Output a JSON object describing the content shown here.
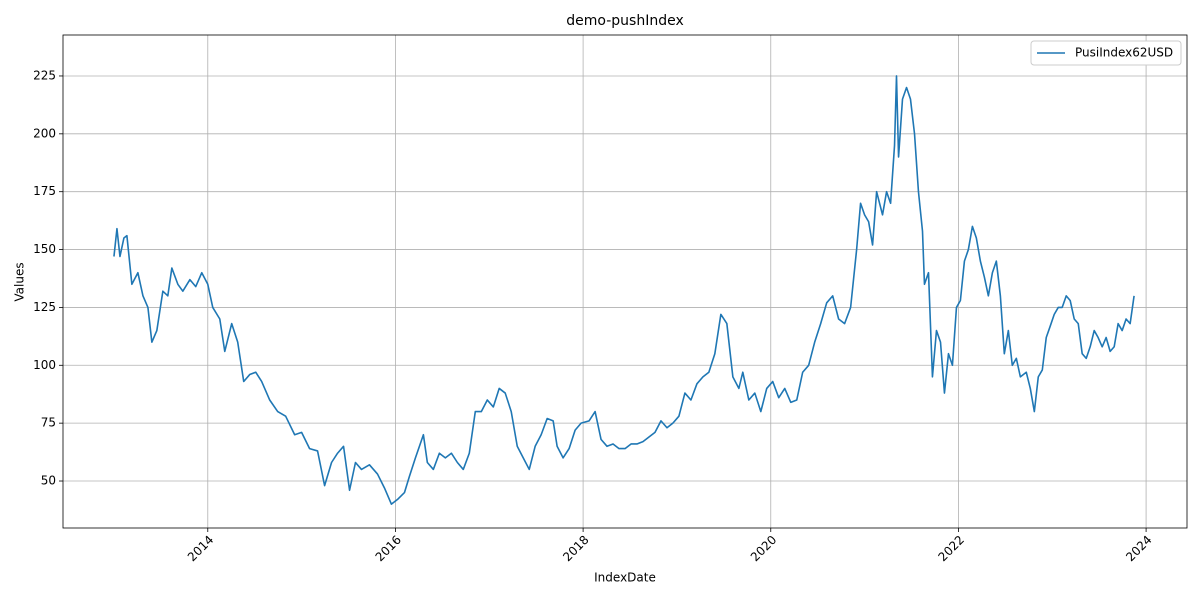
{
  "chart_data": {
    "type": "line",
    "title": "demo-pushIndex",
    "x_label": "IndexDate",
    "y_label": "Values",
    "x": [
      2013.0,
      2013.032,
      2013.064,
      2013.106,
      2013.138,
      2013.191,
      2013.255,
      2013.309,
      2013.362,
      2013.404,
      2013.457,
      2013.521,
      2013.574,
      2013.617,
      2013.681,
      2013.734,
      2013.809,
      2013.872,
      2013.936,
      2014.0,
      2014.053,
      2014.128,
      2014.181,
      2014.255,
      2014.319,
      2014.383,
      2014.447,
      2014.511,
      2014.574,
      2014.66,
      2014.745,
      2014.83,
      2014.926,
      2015.0,
      2015.085,
      2015.17,
      2015.245,
      2015.319,
      2015.383,
      2015.447,
      2015.511,
      2015.574,
      2015.638,
      2015.723,
      2015.809,
      2015.883,
      2015.957,
      2016.021,
      2016.096,
      2016.149,
      2016.213,
      2016.298,
      2016.34,
      2016.404,
      2016.468,
      2016.532,
      2016.596,
      2016.66,
      2016.723,
      2016.787,
      2016.851,
      2016.915,
      2016.979,
      2017.043,
      2017.106,
      2017.17,
      2017.234,
      2017.298,
      2017.362,
      2017.426,
      2017.489,
      2017.553,
      2017.617,
      2017.681,
      2017.723,
      2017.787,
      2017.851,
      2017.915,
      2017.979,
      2018.064,
      2018.128,
      2018.191,
      2018.255,
      2018.319,
      2018.383,
      2018.447,
      2018.511,
      2018.574,
      2018.638,
      2018.702,
      2018.766,
      2018.83,
      2018.894,
      2018.957,
      2019.021,
      2019.085,
      2019.149,
      2019.213,
      2019.277,
      2019.34,
      2019.404,
      2019.468,
      2019.532,
      2019.596,
      2019.66,
      2019.702,
      2019.766,
      2019.83,
      2019.894,
      2019.957,
      2020.021,
      2020.085,
      2020.149,
      2020.213,
      2020.277,
      2020.34,
      2020.404,
      2020.468,
      2020.532,
      2020.596,
      2020.66,
      2020.723,
      2020.787,
      2020.851,
      2020.915,
      2020.957,
      2021.0,
      2021.043,
      2021.085,
      2021.128,
      2021.191,
      2021.234,
      2021.277,
      2021.319,
      2021.34,
      2021.362,
      2021.404,
      2021.447,
      2021.489,
      2021.532,
      2021.574,
      2021.617,
      2021.638,
      2021.681,
      2021.723,
      2021.766,
      2021.809,
      2021.851,
      2021.894,
      2021.936,
      2021.979,
      2022.021,
      2022.064,
      2022.106,
      2022.149,
      2022.191,
      2022.234,
      2022.277,
      2022.319,
      2022.362,
      2022.404,
      2022.447,
      2022.489,
      2022.532,
      2022.574,
      2022.617,
      2022.66,
      2022.723,
      2022.766,
      2022.809,
      2022.851,
      2022.894,
      2022.936,
      2022.979,
      2023.021,
      2023.064,
      2023.106,
      2023.149,
      2023.191,
      2023.234,
      2023.277,
      2023.319,
      2023.362,
      2023.404,
      2023.447,
      2023.489,
      2023.532,
      2023.574,
      2023.617,
      2023.66,
      2023.702,
      2023.745,
      2023.787,
      2023.83,
      2023.872
    ],
    "series": [
      {
        "name": "PusiIndex62USD",
        "color": "#1f77b4",
        "values": [
          147,
          159,
          147,
          155,
          156,
          135,
          140,
          130,
          125,
          110,
          115,
          132,
          130,
          142,
          135,
          132,
          137,
          134,
          140,
          135,
          125,
          120,
          106,
          118,
          110,
          93,
          96,
          97,
          93,
          85,
          80,
          78,
          70,
          71,
          64,
          63,
          48,
          58,
          62,
          65,
          46,
          58,
          55,
          57,
          53,
          47,
          40,
          42,
          45,
          52,
          60,
          70,
          58,
          55,
          62,
          60,
          62,
          58,
          55,
          62,
          80,
          80,
          85,
          82,
          90,
          88,
          80,
          65,
          60,
          55,
          65,
          70,
          77,
          76,
          65,
          60,
          64,
          72,
          75,
          76,
          80,
          68,
          65,
          66,
          64,
          64,
          66,
          66,
          67,
          69,
          71,
          76,
          73,
          75,
          78,
          88,
          85,
          92,
          95,
          97,
          105,
          122,
          118,
          95,
          90,
          97,
          85,
          88,
          80,
          90,
          93,
          86,
          90,
          84,
          85,
          97,
          100,
          110,
          118,
          127,
          130,
          120,
          118,
          125,
          150,
          170,
          165,
          162,
          152,
          175,
          165,
          175,
          170,
          195,
          225,
          190,
          215,
          220,
          215,
          200,
          175,
          158,
          135,
          140,
          95,
          115,
          110,
          88,
          105,
          100,
          125,
          128,
          145,
          150,
          160,
          155,
          145,
          138,
          130,
          140,
          145,
          130,
          105,
          115,
          100,
          103,
          95,
          97,
          90,
          80,
          95,
          98,
          112,
          117,
          122,
          125,
          125,
          130,
          128,
          120,
          118,
          105,
          103,
          108,
          115,
          112,
          108,
          112,
          106,
          108,
          118,
          115,
          120,
          118,
          130
        ]
      }
    ],
    "xlim": [
      2012.457,
      2024.436
    ],
    "xticks": [
      2014,
      2016,
      2018,
      2020,
      2022,
      2024
    ],
    "ylim": [
      29.7,
      242.7
    ],
    "yticks": [
      50,
      75,
      100,
      125,
      150,
      175,
      200,
      225
    ],
    "grid": true,
    "legend": "upper right"
  }
}
